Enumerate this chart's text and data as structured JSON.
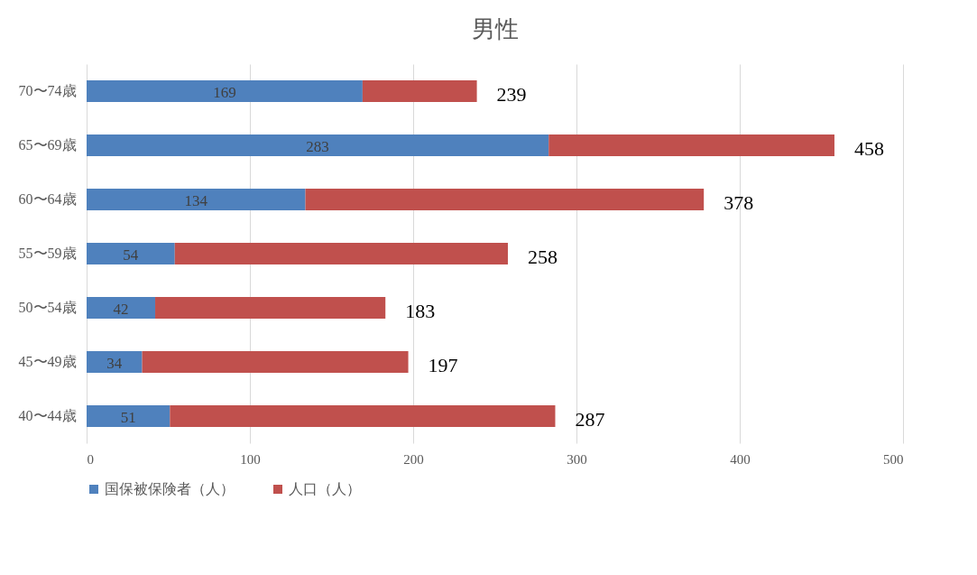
{
  "chart_data": {
    "type": "bar",
    "orientation": "horizontal",
    "stacked": true,
    "title": "男性",
    "categories": [
      "70〜74歳",
      "65〜69歳",
      "60〜64歳",
      "55〜59歳",
      "50〜54歳",
      "45〜49歳",
      "40〜44歳"
    ],
    "series": [
      {
        "name": "国保被保険者（人）",
        "color": "#4f81bd",
        "values": [
          169,
          283,
          134,
          54,
          42,
          34,
          51
        ],
        "value_labels": [
          "169",
          "283",
          "134",
          "54",
          "42",
          "34",
          "51"
        ]
      },
      {
        "name": "人口（人）",
        "color": "#c0504d",
        "values": [
          70,
          175,
          244,
          204,
          141,
          163,
          236
        ]
      }
    ],
    "totals": [
      "239",
      "458",
      "378",
      "258",
      "183",
      "197",
      "287"
    ],
    "xlim": [
      0,
      500
    ],
    "xticks": [
      0,
      100,
      200,
      300,
      400,
      500
    ],
    "grid": "x",
    "legend": "bottom"
  }
}
